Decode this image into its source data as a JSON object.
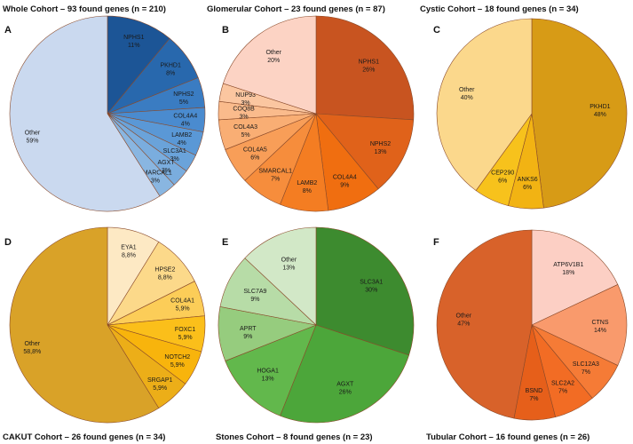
{
  "figure": {
    "panels": [
      {
        "letter": "A",
        "title": "Whole Cohort – 93 found genes (n = 210)"
      },
      {
        "letter": "B",
        "title": "Glomerular Cohort – 23 found genes (n = 87)"
      },
      {
        "letter": "C",
        "title": "Cystic Cohort – 18 found genes (n = 34)"
      },
      {
        "letter": "D",
        "title": "CAKUT Cohort – 26 found genes (n = 34)"
      },
      {
        "letter": "E",
        "title": "Stones Cohort – 8 found genes (n = 23)"
      },
      {
        "letter": "F",
        "title": "Tubular Cohort – 16 found genes (n = 26)"
      }
    ]
  },
  "chart_data": [
    {
      "type": "pie",
      "title": "Whole Cohort – 93 found genes (n = 210)",
      "panel": "A",
      "start_angle_deg": 0,
      "slices": [
        {
          "label": "NPHS1",
          "value": 11,
          "text": "11%",
          "color": "#1c5596"
        },
        {
          "label": "PKHD1",
          "value": 8,
          "text": "8%",
          "color": "#2868ad"
        },
        {
          "label": "NPHS2",
          "value": 5,
          "text": "5%",
          "color": "#3a7cc2"
        },
        {
          "label": "COL4A4",
          "value": 4,
          "text": "4%",
          "color": "#4a8bcf"
        },
        {
          "label": "LAMB2",
          "value": 4,
          "text": "4%",
          "color": "#5a98d6"
        },
        {
          "label": "SLC3A1",
          "value": 3,
          "text": "3%",
          "color": "#6aa3da"
        },
        {
          "label": "AGXT",
          "value": 3,
          "text": "3%",
          "color": "#7aadde"
        },
        {
          "label": "SMARCAL1",
          "value": 3,
          "text": "3%",
          "color": "#89b6e1"
        },
        {
          "label": "Other",
          "value": 59,
          "text": "59%",
          "color": "#cad9ef"
        }
      ]
    },
    {
      "type": "pie",
      "title": "Glomerular Cohort – 23 found genes (n = 87)",
      "panel": "B",
      "start_angle_deg": 0,
      "slices": [
        {
          "label": "NPHS1",
          "value": 26,
          "text": "26%",
          "color": "#c85420"
        },
        {
          "label": "NPHS2",
          "value": 13,
          "text": "13%",
          "color": "#e0621a"
        },
        {
          "label": "COL4A4",
          "value": 9,
          "text": "9%",
          "color": "#f06e10"
        },
        {
          "label": "LAMB2",
          "value": 8,
          "text": "8%",
          "color": "#f47d22"
        },
        {
          "label": "SMARCAL1",
          "value": 7,
          "text": "7%",
          "color": "#f68d3c"
        },
        {
          "label": "COL4A5",
          "value": 6,
          "text": "6%",
          "color": "#f89e58"
        },
        {
          "label": "COL4A3",
          "value": 5,
          "text": "5%",
          "color": "#f9ae74"
        },
        {
          "label": "COQ8B",
          "value": 3,
          "text": "3%",
          "color": "#fabb8c"
        },
        {
          "label": "NUP93",
          "value": 3,
          "text": "3%",
          "color": "#fbc6a0"
        },
        {
          "label": "Other",
          "value": 20,
          "text": "20%",
          "color": "#fcd3c4"
        }
      ]
    },
    {
      "type": "pie",
      "title": "Cystic Cohort – 18 found genes (n = 34)",
      "panel": "C",
      "start_angle_deg": 0,
      "slices": [
        {
          "label": "PKHD1",
          "value": 48,
          "text": "48%",
          "color": "#d79b16"
        },
        {
          "label": "ANKS6",
          "value": 6,
          "text": "6%",
          "color": "#f2b313"
        },
        {
          "label": "CEP290",
          "value": 6,
          "text": "6%",
          "color": "#f7c21c"
        },
        {
          "label": "Other",
          "value": 40,
          "text": "40%",
          "color": "#fbd88c"
        }
      ]
    },
    {
      "type": "pie",
      "title": "CAKUT Cohort – 26 found genes (n = 34)",
      "panel": "D",
      "start_angle_deg": 0,
      "slices": [
        {
          "label": "EYA1",
          "value": 8.8,
          "text": "8,8%",
          "color": "#fde9c4"
        },
        {
          "label": "HPSE2",
          "value": 8.8,
          "text": "8,8%",
          "color": "#fcd98a"
        },
        {
          "label": "COL4A1",
          "value": 5.9,
          "text": "5,9%",
          "color": "#fccd58"
        },
        {
          "label": "FOXC1",
          "value": 5.9,
          "text": "5,9%",
          "color": "#fbbf1a"
        },
        {
          "label": "NOTCH2",
          "value": 5.9,
          "text": "5,9%",
          "color": "#f8b40c"
        },
        {
          "label": "SRGAP1",
          "value": 5.9,
          "text": "5,9%",
          "color": "#ecae18"
        },
        {
          "label": "Other",
          "value": 58.8,
          "text": "58,8%",
          "color": "#d9a228"
        }
      ]
    },
    {
      "type": "pie",
      "title": "Stones Cohort – 8 found genes (n = 23)",
      "panel": "E",
      "start_angle_deg": 0,
      "slices": [
        {
          "label": "SLC3A1",
          "value": 30,
          "text": "30%",
          "color": "#3d8b2f"
        },
        {
          "label": "AGXT",
          "value": 26,
          "text": "26%",
          "color": "#4ca63a"
        },
        {
          "label": "HOGA1",
          "value": 13,
          "text": "13%",
          "color": "#62b84c"
        },
        {
          "label": "APRT",
          "value": 9,
          "text": "9%",
          "color": "#96cc7e"
        },
        {
          "label": "SLC7A9",
          "value": 9,
          "text": "9%",
          "color": "#b7dca7"
        },
        {
          "label": "Other",
          "value": 13,
          "text": "13%",
          "color": "#d2e8c7"
        }
      ]
    },
    {
      "type": "pie",
      "title": "Tubular Cohort – 16 found genes (n = 26)",
      "panel": "F",
      "start_angle_deg": 0,
      "slices": [
        {
          "label": "ATP6V1B1",
          "value": 18,
          "text": "18%",
          "color": "#fccfc4"
        },
        {
          "label": "CTNS",
          "value": 14,
          "text": "14%",
          "color": "#f99a6c"
        },
        {
          "label": "SLC12A3",
          "value": 7,
          "text": "7%",
          "color": "#f57b36"
        },
        {
          "label": "SLC2A2",
          "value": 7,
          "text": "7%",
          "color": "#f26c24"
        },
        {
          "label": "BSND",
          "value": 7,
          "text": "7%",
          "color": "#e65f1a"
        },
        {
          "label": "Other",
          "value": 47,
          "text": "47%",
          "color": "#d8622a"
        }
      ]
    }
  ]
}
